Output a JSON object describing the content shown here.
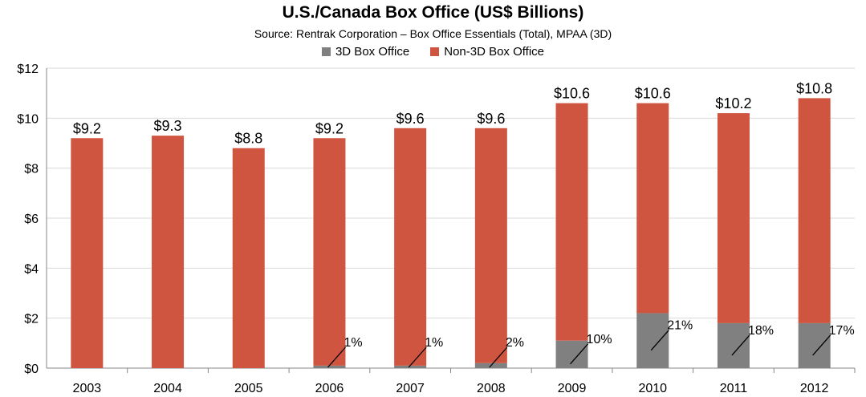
{
  "chart_data": {
    "type": "bar",
    "stacked": true,
    "title": "U.S./Canada Box Office (US$ Billions)",
    "subtitle": "Source: Rentrak Corporation – Box Office Essentials (Total), MPAA (3D)",
    "categories": [
      "2003",
      "2004",
      "2005",
      "2006",
      "2007",
      "2008",
      "2009",
      "2010",
      "2011",
      "2012"
    ],
    "series": [
      {
        "name": "3D Box Office",
        "color": "#808080",
        "values": [
          0,
          0,
          0,
          0.1,
          0.1,
          0.2,
          1.1,
          2.2,
          1.8,
          1.8
        ]
      },
      {
        "name": "Non-3D Box Office",
        "color": "#cf5540",
        "values": [
          9.2,
          9.3,
          8.8,
          9.1,
          9.5,
          9.4,
          9.5,
          8.4,
          8.4,
          9.0
        ]
      }
    ],
    "total_labels": [
      "$9.2",
      "$9.3",
      "$8.8",
      "$9.2",
      "$9.6",
      "$9.6",
      "$10.6",
      "$10.6",
      "$10.2",
      "$10.8"
    ],
    "share_labels": [
      "",
      "",
      "",
      "1%",
      "1%",
      "2%",
      "10%",
      "21%",
      "18%",
      "17%"
    ],
    "yticks": [
      "$0",
      "$2",
      "$4",
      "$6",
      "$8",
      "$10",
      "$12"
    ],
    "ylim": [
      0,
      12
    ],
    "grid": true,
    "legend": "top-center"
  }
}
